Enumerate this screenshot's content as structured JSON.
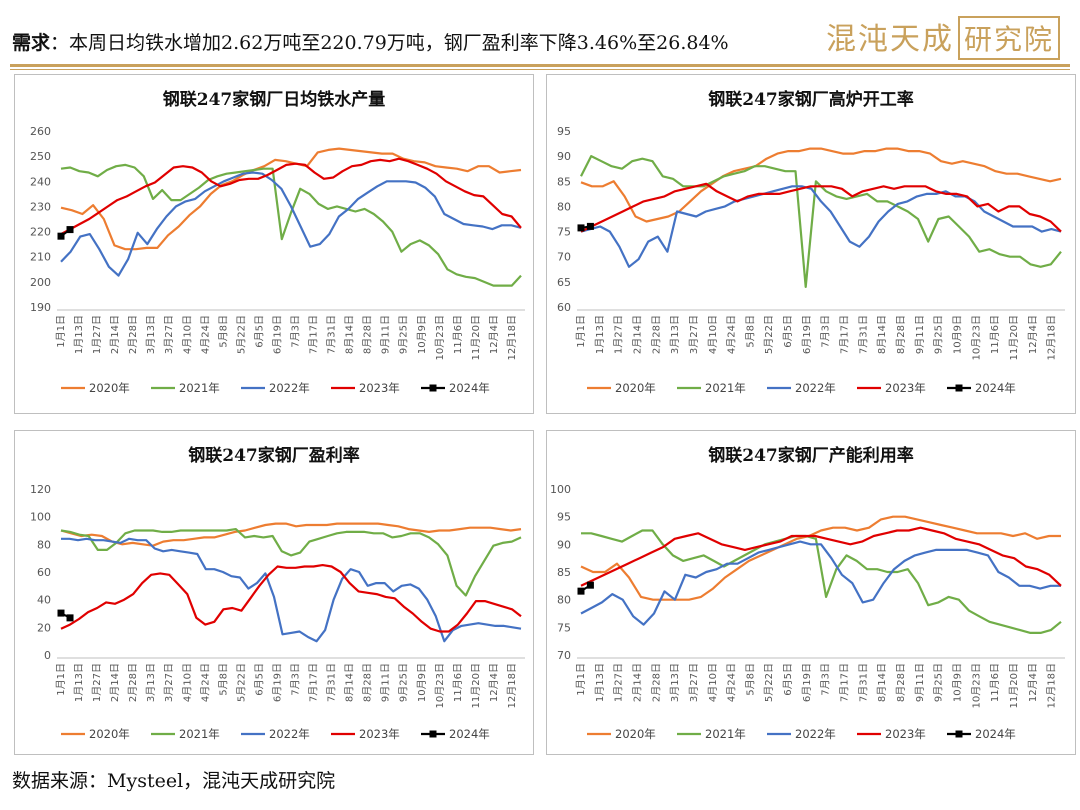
{
  "header": {
    "label": "需求",
    "text": "：本周日均铁水增加2.62万吨至220.79万吨，钢厂盈利率下降3.46%至26.84%",
    "logo_text": "混沌天成",
    "logo_seal": "研究院"
  },
  "footer": {
    "source": "数据来源：Mysteel，混沌天成研究院"
  },
  "colors": {
    "accent": "#c9a15c",
    "2020年": "#ED7D31",
    "2021年": "#70AD47",
    "2022年": "#4472C4",
    "2023年": "#E00000",
    "2024年": "#000000"
  },
  "chart_data": [
    {
      "type": "line",
      "title": "钢联247家钢厂日均铁水产量",
      "x_ticks": [
        "1月1日",
        "1月13日",
        "1月27日",
        "2月14日",
        "2月28日",
        "3月13日",
        "3月27日",
        "4月10日",
        "4月24日",
        "5月8日",
        "5月22日",
        "6月5日",
        "6月19日",
        "7月3日",
        "7月17日",
        "7月31日",
        "8月14日",
        "8月28日",
        "9月11日",
        "9月25日",
        "10月9日",
        "10月23日",
        "11月6日",
        "11月20日",
        "12月4日",
        "12月18日"
      ],
      "ylim": [
        190,
        260
      ],
      "yticks": [
        190,
        200,
        210,
        220,
        230,
        240,
        250,
        260
      ],
      "series": [
        {
          "name": "2020年",
          "values": [
            229.5,
            228.5,
            227,
            230.5,
            225,
            214.5,
            213,
            213,
            213.5,
            213.5,
            218.5,
            222,
            226.5,
            230,
            235,
            238.5,
            240,
            242.5,
            244.5,
            246,
            248.5,
            248,
            247,
            246,
            251.5,
            252.5,
            253,
            252.5,
            252,
            251.5,
            251,
            251,
            249,
            248,
            247.5,
            246,
            245.5,
            245,
            244,
            246,
            246,
            243.5,
            244,
            244.5
          ]
        },
        {
          "name": "2021年",
          "values": [
            245,
            245.5,
            244,
            243.5,
            242,
            244.5,
            246,
            246.5,
            245.5,
            242,
            233,
            236.5,
            232.5,
            232.5,
            235,
            237.5,
            240.5,
            242,
            243,
            243.5,
            244,
            244.5,
            245,
            245,
            217,
            227.5,
            237,
            235,
            231,
            229,
            230,
            229,
            228,
            229,
            227,
            224,
            220,
            212,
            215,
            216.5,
            214.5,
            211,
            205,
            203,
            202,
            201.5,
            200,
            198.5,
            198.5,
            198.5,
            202.5
          ]
        },
        {
          "name": "2022年",
          "values": [
            208,
            212,
            218,
            219,
            213,
            206,
            202.5,
            209,
            219.5,
            215,
            221,
            226,
            230,
            232,
            233,
            236,
            238,
            240,
            241.5,
            243,
            243.5,
            243,
            240.5,
            237,
            230,
            222,
            214,
            215,
            219,
            226,
            229,
            233,
            235.5,
            238,
            240,
            240,
            240,
            239.5,
            237.5,
            234,
            227,
            225,
            223,
            222.5,
            222,
            221,
            222.5,
            222.5,
            221.5
          ]
        },
        {
          "name": "2023年",
          "values": [
            219,
            221,
            223,
            225,
            227.5,
            230,
            232.5,
            234,
            236,
            238,
            239.5,
            242.5,
            245.5,
            246,
            245.5,
            243.5,
            240,
            238,
            239,
            240.5,
            241,
            241,
            242.5,
            244.5,
            246.5,
            247,
            246.5,
            243.5,
            241,
            241.5,
            244,
            246,
            246.5,
            248,
            248.5,
            248,
            249,
            248,
            246.5,
            245,
            243,
            240,
            238,
            236,
            234.5,
            234,
            230.5,
            227,
            226,
            221.5
          ]
        },
        {
          "name": "2024年",
          "values": [
            218.17,
            220.79
          ]
        }
      ]
    },
    {
      "type": "line",
      "title": "钢联247家钢厂高炉开工率",
      "x_ticks": [
        "1月1日",
        "1月13日",
        "1月27日",
        "2月14日",
        "2月28日",
        "3月13日",
        "3月27日",
        "4月10日",
        "4月24日",
        "5月8日",
        "5月22日",
        "6月5日",
        "6月19日",
        "7月3日",
        "7月17日",
        "7月31日",
        "8月14日",
        "8月28日",
        "9月11日",
        "9月25日",
        "10月9日",
        "10月23日",
        "11月6日",
        "11月20日",
        "12月4日",
        "12月18日"
      ],
      "ylim": [
        60,
        95
      ],
      "yticks": [
        60,
        65,
        70,
        75,
        80,
        85,
        90,
        95
      ],
      "series": [
        {
          "name": "2020年",
          "values": [
            84.8,
            84,
            84,
            85,
            82,
            78,
            77,
            77.5,
            78,
            79,
            81,
            83,
            84.5,
            86,
            87,
            87.5,
            88,
            89.5,
            90.5,
            91,
            91,
            91.5,
            91.5,
            91,
            90.5,
            90.5,
            91,
            91,
            91.5,
            91.5,
            91,
            91,
            90.5,
            89,
            88.5,
            89,
            88.5,
            88,
            87,
            86.5,
            86.5,
            86,
            85.5,
            85,
            85.5
          ]
        },
        {
          "name": "2021年",
          "values": [
            86,
            90,
            89,
            88,
            87.5,
            89,
            89.5,
            89,
            86,
            85.5,
            84,
            84,
            84,
            85,
            86,
            86.5,
            87,
            88,
            88,
            87.5,
            87,
            87,
            64,
            85,
            83,
            82,
            81.5,
            82,
            82.5,
            81,
            81,
            80,
            79,
            77.5,
            73,
            77.5,
            78,
            76,
            74,
            71,
            71.5,
            70.5,
            70,
            70,
            68.5,
            68,
            68.5,
            71
          ]
        },
        {
          "name": "2022年",
          "values": [
            75,
            75.5,
            76,
            75,
            72,
            68,
            69.5,
            73,
            74,
            71,
            79,
            78.5,
            78,
            79,
            79.5,
            80,
            81,
            81.5,
            82,
            82.5,
            83,
            83.5,
            84,
            84,
            83.5,
            81,
            79,
            76,
            73,
            72,
            74,
            77,
            79,
            80.5,
            81,
            82,
            82.5,
            82.5,
            83,
            82,
            82,
            81,
            79,
            78,
            77,
            76,
            76,
            76,
            75,
            75.5,
            75
          ]
        },
        {
          "name": "2023年",
          "values": [
            75,
            76,
            77,
            78,
            79,
            80,
            81,
            81.5,
            82,
            83,
            83.5,
            84,
            84.5,
            83,
            82,
            81,
            82,
            82.5,
            82.5,
            82.5,
            83,
            83.5,
            84,
            84,
            84,
            83.5,
            82,
            83,
            83.5,
            84,
            83.5,
            84,
            84,
            84,
            83,
            82.5,
            82.5,
            82,
            80,
            80.5,
            79,
            80,
            80,
            78.5,
            78,
            77,
            75
          ]
        },
        {
          "name": "2024年",
          "values": [
            75.73,
            76.03
          ]
        }
      ]
    },
    {
      "type": "line",
      "title": "钢联247家钢厂盈利率",
      "x_ticks": [
        "1月1日",
        "1月13日",
        "1月27日",
        "2月14日",
        "2月28日",
        "3月13日",
        "3月27日",
        "4月10日",
        "4月24日",
        "5月8日",
        "5月22日",
        "6月5日",
        "6月19日",
        "7月3日",
        "7月17日",
        "7月31日",
        "8月14日",
        "8月28日",
        "9月11日",
        "9月25日",
        "10月9日",
        "10月23日",
        "11月6日",
        "11月20日",
        "12月4日",
        "12月18日"
      ],
      "ylim": [
        0,
        120
      ],
      "yticks": [
        0,
        20,
        40,
        60,
        80,
        100,
        120
      ],
      "series": [
        {
          "name": "2020年",
          "values": [
            90,
            88,
            86,
            87,
            86,
            82,
            80,
            81,
            80,
            79,
            82,
            83,
            83,
            84,
            85,
            85,
            87,
            89,
            90,
            92,
            94,
            95,
            95,
            93,
            94,
            94,
            94,
            95,
            95,
            95,
            95,
            95,
            94,
            93,
            91,
            90,
            89,
            90,
            90,
            91,
            92,
            92,
            92,
            91,
            90,
            91
          ]
        },
        {
          "name": "2021年",
          "values": [
            90,
            89,
            87,
            86,
            76,
            76,
            81,
            88,
            90,
            90,
            90,
            89,
            89,
            90,
            90,
            90,
            90,
            90,
            90,
            91,
            85,
            86,
            85,
            86,
            75,
            72,
            74,
            82,
            84,
            86,
            88,
            89,
            89,
            89,
            88,
            88,
            85,
            86,
            88,
            88,
            85,
            80,
            72,
            50,
            43,
            57,
            68,
            79,
            81,
            82,
            85
          ]
        },
        {
          "name": "2022年",
          "values": [
            84,
            84,
            83,
            84,
            83,
            83,
            82,
            81,
            84,
            83,
            83,
            77,
            75,
            76,
            75,
            74,
            73,
            62,
            62,
            60,
            57,
            56,
            48,
            52,
            59,
            42,
            15,
            16,
            17,
            13,
            10,
            18,
            40,
            55,
            62,
            60,
            50,
            52,
            52,
            46,
            50,
            51,
            48,
            40,
            28,
            10,
            18,
            21,
            22,
            23,
            22,
            21,
            21,
            20,
            19
          ]
        },
        {
          "name": "2023年",
          "values": [
            19,
            22,
            26,
            31,
            34,
            38,
            37,
            40,
            44,
            52,
            58,
            59,
            58,
            51,
            44,
            27,
            22,
            24,
            33,
            34,
            32,
            41,
            50,
            58,
            64,
            63,
            63,
            64,
            64,
            65,
            64,
            60,
            52,
            46,
            45,
            44,
            42,
            41,
            35,
            30,
            24,
            19,
            17,
            17,
            22,
            30,
            39,
            39,
            37,
            35,
            33,
            28
          ]
        },
        {
          "name": "2024年",
          "values": [
            30.3,
            26.84
          ]
        }
      ]
    },
    {
      "type": "line",
      "title": "钢联247家钢厂产能利用率",
      "x_ticks": [
        "1月1日",
        "1月13日",
        "1月27日",
        "2月14日",
        "2月28日",
        "3月13日",
        "3月27日",
        "4月10日",
        "4月24日",
        "5月8日",
        "5月22日",
        "6月5日",
        "6月19日",
        "7月3日",
        "7月17日",
        "7月31日",
        "8月14日",
        "8月28日",
        "9月11日",
        "9月25日",
        "10月9日",
        "10月23日",
        "11月6日",
        "11月20日",
        "12月4日",
        "12月18日"
      ],
      "ylim": [
        70,
        100
      ],
      "yticks": [
        70,
        75,
        80,
        85,
        90,
        95,
        100
      ],
      "series": [
        {
          "name": "2020年",
          "values": [
            86,
            85,
            85,
            86.5,
            84,
            80.5,
            80,
            80,
            80,
            80,
            80.5,
            82,
            84,
            85.5,
            87,
            88,
            89,
            90,
            91,
            91.5,
            92.5,
            93,
            93,
            92.5,
            93,
            94.5,
            95,
            95,
            94.5,
            94,
            93.5,
            93,
            92.5,
            92,
            92,
            92,
            91.5,
            92,
            91,
            91.5,
            91.5
          ]
        },
        {
          "name": "2021年",
          "values": [
            92,
            92,
            91.5,
            91,
            90.5,
            91.5,
            92.5,
            92.5,
            90,
            88,
            87,
            87.5,
            88,
            87,
            86,
            87,
            88,
            89,
            90,
            90.5,
            91,
            91.5,
            91.5,
            91,
            80.5,
            85.5,
            88,
            87,
            85.5,
            85.5,
            85,
            85,
            85.5,
            83,
            79,
            79.5,
            80.5,
            80,
            78,
            77,
            76,
            75.5,
            75,
            74.5,
            74,
            74,
            74.5,
            76
          ]
        },
        {
          "name": "2022年",
          "values": [
            77.5,
            78.5,
            79.5,
            81,
            80,
            77,
            75.5,
            77.5,
            81.5,
            80,
            84.5,
            84,
            85,
            85.5,
            86.5,
            86.5,
            87.5,
            88.5,
            89,
            89.5,
            90,
            90.5,
            90,
            90,
            87.5,
            84.5,
            83,
            79.5,
            80,
            83,
            85.5,
            87,
            88,
            88.5,
            89,
            89,
            89,
            89,
            88.5,
            88,
            85,
            84,
            82.5,
            82.5,
            82,
            82.5,
            82.5
          ]
        },
        {
          "name": "2023年",
          "values": [
            82.5,
            83.5,
            84.5,
            85.5,
            86.5,
            87.5,
            88.5,
            89.5,
            91,
            91.5,
            92,
            91,
            90,
            89.5,
            89,
            89.5,
            90,
            90.5,
            91.5,
            91.5,
            91.5,
            91,
            90.5,
            90,
            90.5,
            91.5,
            92,
            92.5,
            92.5,
            93,
            92.5,
            92,
            91,
            90.5,
            90,
            89,
            88,
            87.5,
            86,
            85.5,
            84.5,
            82.5
          ]
        },
        {
          "name": "2024年",
          "values": [
            81.54,
            82.62
          ]
        }
      ]
    }
  ]
}
